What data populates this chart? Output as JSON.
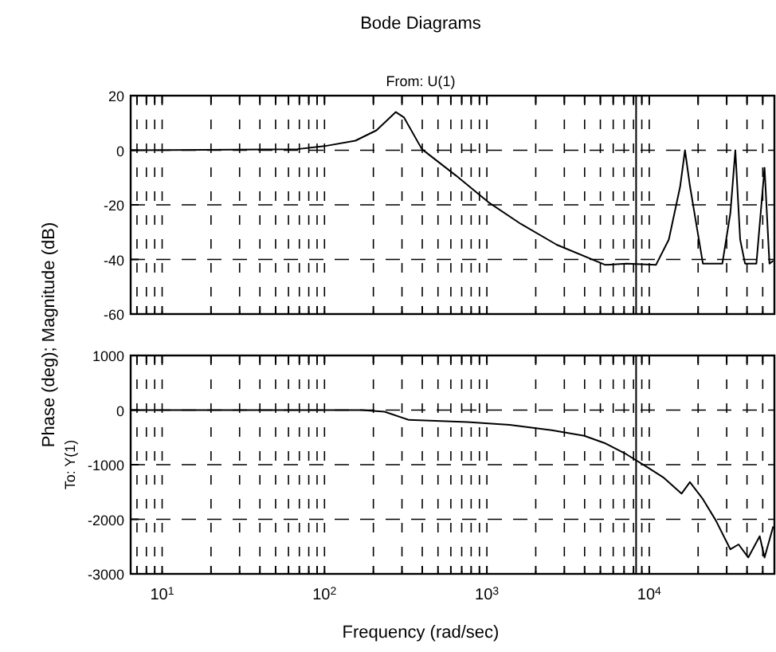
{
  "chart_data": [
    {
      "type": "line",
      "title": "Bode Diagrams",
      "subtitle": "From: U(1)",
      "ylabel": "Phase (deg); Magnitude (dB)",
      "log": "x",
      "grid": true,
      "tick_labels": "y",
      "marker": "none",
      "line_style": "solid",
      "xlim": [
        6.4,
        59000
      ],
      "ylim": [
        -60,
        20
      ],
      "yticks": [
        -60,
        -40,
        -20,
        0,
        20
      ],
      "xticks": [
        {
          "value": 7,
          "label": null
        },
        {
          "value": 8,
          "label": null
        },
        {
          "value": 9,
          "label": null
        },
        {
          "value": 10,
          "label": null
        },
        {
          "value": 20,
          "label": null
        },
        {
          "value": 30,
          "label": null
        },
        {
          "value": 40,
          "label": null
        },
        {
          "value": 50,
          "label": null
        },
        {
          "value": 60,
          "label": null
        },
        {
          "value": 70,
          "label": null
        },
        {
          "value": 80,
          "label": null
        },
        {
          "value": 90,
          "label": null
        },
        {
          "value": 100,
          "label": null
        },
        {
          "value": 200,
          "label": null
        },
        {
          "value": 300,
          "label": null
        },
        {
          "value": 400,
          "label": null
        },
        {
          "value": 500,
          "label": null
        },
        {
          "value": 600,
          "label": null
        },
        {
          "value": 700,
          "label": null
        },
        {
          "value": 800,
          "label": null
        },
        {
          "value": 900,
          "label": null
        },
        {
          "value": 1000,
          "label": null
        },
        {
          "value": 2000,
          "label": null
        },
        {
          "value": 3000,
          "label": null
        },
        {
          "value": 4000,
          "label": null
        },
        {
          "value": 5000,
          "label": null
        },
        {
          "value": 6000,
          "label": null
        },
        {
          "value": 7000,
          "label": null
        },
        {
          "value": 8000,
          "label": null
        },
        {
          "value": 9000,
          "label": null
        },
        {
          "value": 10000,
          "label": null
        },
        {
          "value": 20000,
          "label": null
        },
        {
          "value": 30000,
          "label": null
        },
        {
          "value": 40000,
          "label": null
        },
        {
          "value": 50000,
          "label": null
        }
      ],
      "ref_lines": [
        {
          "axis": "x",
          "value": 8300,
          "color": "#000000",
          "line_style": "solid"
        }
      ],
      "series": [
        {
          "color": "#000000",
          "x": [
            6.4,
            68,
            100,
            155,
            209,
            275,
            309,
            398,
            646,
            1020,
            1620,
            2690,
            5370,
            7240,
            11000,
            13200,
            15500,
            16600,
            17800,
            21400,
            28200,
            31600,
            33900,
            36300,
            38900,
            45700,
            51300,
            55000,
            58000
          ],
          "values": [
            0,
            0.4,
            1.5,
            3.5,
            7.3,
            14,
            12,
            0.4,
            -9.3,
            -19,
            -27,
            -34.6,
            -42,
            -41.5,
            -42,
            -32.7,
            -13.3,
            0,
            -13,
            -41.5,
            -41.5,
            -23,
            0,
            -32.7,
            -41.5,
            -41.5,
            -6.4,
            -41.5,
            -40.5
          ]
        }
      ]
    },
    {
      "type": "line",
      "ylabel": "To: Y(1)",
      "xlabel": "Frequency (rad/sec)",
      "log": "x",
      "grid": true,
      "marker": "none",
      "line_style": "solid",
      "xlim": [
        6.4,
        59000
      ],
      "ylim": [
        -3000,
        1000
      ],
      "yticks": [
        -3000,
        -2000,
        -1000,
        0,
        1000
      ],
      "xticks": [
        {
          "value": 7,
          "label": null
        },
        {
          "value": 8,
          "label": null
        },
        {
          "value": 9,
          "label": null
        },
        {
          "value": 10,
          "label": "10$^{1}$"
        },
        {
          "value": 20,
          "label": null
        },
        {
          "value": 30,
          "label": null
        },
        {
          "value": 40,
          "label": null
        },
        {
          "value": 50,
          "label": null
        },
        {
          "value": 60,
          "label": null
        },
        {
          "value": 70,
          "label": null
        },
        {
          "value": 80,
          "label": null
        },
        {
          "value": 90,
          "label": null
        },
        {
          "value": 100,
          "label": "10$^{2}$"
        },
        {
          "value": 200,
          "label": null
        },
        {
          "value": 300,
          "label": null
        },
        {
          "value": 400,
          "label": null
        },
        {
          "value": 500,
          "label": null
        },
        {
          "value": 600,
          "label": null
        },
        {
          "value": 700,
          "label": null
        },
        {
          "value": 800,
          "label": null
        },
        {
          "value": 900,
          "label": null
        },
        {
          "value": 1000,
          "label": "10$^{3}$"
        },
        {
          "value": 2000,
          "label": null
        },
        {
          "value": 3000,
          "label": null
        },
        {
          "value": 4000,
          "label": null
        },
        {
          "value": 5000,
          "label": null
        },
        {
          "value": 6000,
          "label": null
        },
        {
          "value": 7000,
          "label": null
        },
        {
          "value": 8000,
          "label": null
        },
        {
          "value": 9000,
          "label": null
        },
        {
          "value": 10000,
          "label": "10$^{4}$"
        },
        {
          "value": 20000,
          "label": null
        },
        {
          "value": 30000,
          "label": null
        },
        {
          "value": 40000,
          "label": null
        },
        {
          "value": 50000,
          "label": null
        }
      ],
      "ref_lines": [
        {
          "axis": "x",
          "value": 8300,
          "color": "#000000",
          "line_style": "solid"
        }
      ],
      "series": [
        {
          "color": "#000000",
          "x": [
            6.4,
            170,
            234,
            331,
            759,
            1380,
            2510,
            3980,
            5370,
            7240,
            9770,
            12300,
            15800,
            17800,
            21400,
            25700,
            31600,
            35500,
            40700,
            47900,
            51300,
            58000
          ],
          "values": [
            0,
            0,
            -30,
            -180,
            -220,
            -270,
            -370,
            -470,
            -610,
            -810,
            -1050,
            -1240,
            -1530,
            -1320,
            -1630,
            -2020,
            -2550,
            -2460,
            -2700,
            -2310,
            -2700,
            -2130
          ]
        }
      ]
    }
  ]
}
